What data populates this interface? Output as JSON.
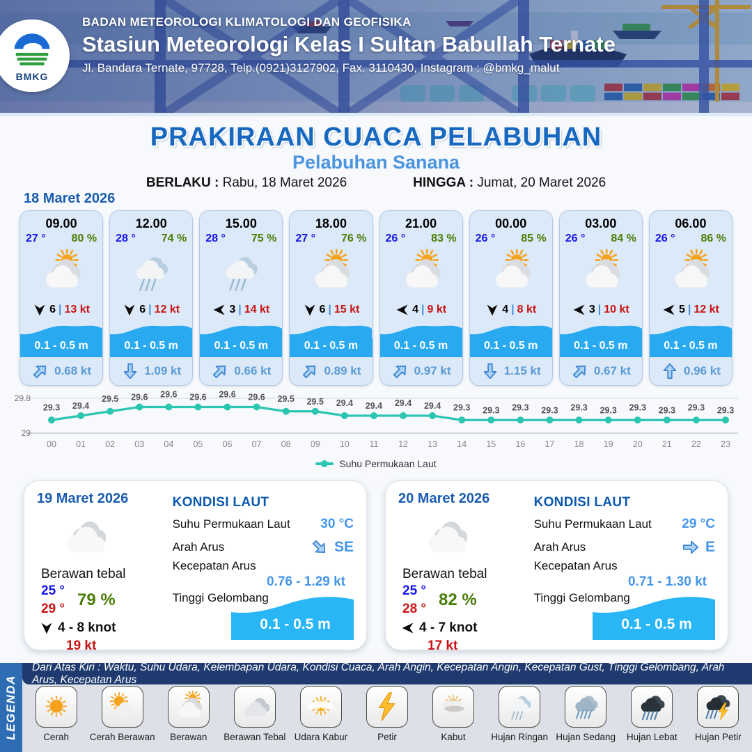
{
  "header": {
    "org": "BADAN METEOROLOGI KLIMATOLOGI DAN GEOFISIKA",
    "station": "Stasiun Meteorologi Kelas I Sultan Babullah Ternate",
    "address": "Jl. Bandara Ternate, 97728, Telp.(0921)3127902, Fax. 3110430, Instagram : @bmkg_malut",
    "logo_text": "BMKG"
  },
  "title": {
    "main": "PRAKIRAAN CUACA PELABUHAN",
    "subtitle": "Pelabuhan Sanana",
    "berlaku_label": "BERLAKU :",
    "berlaku_value": "Rabu, 18 Maret 2026",
    "hingga_label": "HINGGA :",
    "hingga_value": "Jumat, 20 Maret 2026"
  },
  "forecast_date": "18 Maret 2026",
  "hourly_cards": [
    {
      "time": "09.00",
      "temp": "27 °",
      "humidity": "80 %",
      "weather_icon": "berawan",
      "wind_dir": "down",
      "wind_speed": "6",
      "gust": "13 kt",
      "wave": "0.1 - 0.5 m",
      "current_dir": "ne",
      "current": "0.68 kt"
    },
    {
      "time": "12.00",
      "temp": "28 °",
      "humidity": "74 %",
      "weather_icon": "hujan-ringan",
      "wind_dir": "down",
      "wind_speed": "6",
      "gust": "12 kt",
      "wave": "0.1 - 0.5 m",
      "current_dir": "down",
      "current": "1.09 kt"
    },
    {
      "time": "15.00",
      "temp": "28 °",
      "humidity": "75 %",
      "weather_icon": "hujan-ringan",
      "wind_dir": "left",
      "wind_speed": "3",
      "gust": "14 kt",
      "wave": "0.1 - 0.5 m",
      "current_dir": "ne",
      "current": "0.66 kt"
    },
    {
      "time": "18.00",
      "temp": "27 °",
      "humidity": "76 %",
      "weather_icon": "berawan",
      "wind_dir": "down",
      "wind_speed": "6",
      "gust": "15 kt",
      "wave": "0.1 - 0.5 m",
      "current_dir": "ne",
      "current": "0.89 kt"
    },
    {
      "time": "21.00",
      "temp": "26 °",
      "humidity": "83 %",
      "weather_icon": "berawan",
      "wind_dir": "left",
      "wind_speed": "4",
      "gust": "9 kt",
      "wave": "0.1 - 0.5 m",
      "current_dir": "ne",
      "current": "0.97 kt"
    },
    {
      "time": "00.00",
      "temp": "26 °",
      "humidity": "85 %",
      "weather_icon": "berawan",
      "wind_dir": "down",
      "wind_speed": "4",
      "gust": "8 kt",
      "wave": "0.1 - 0.5 m",
      "current_dir": "down",
      "current": "1.15 kt"
    },
    {
      "time": "03.00",
      "temp": "26 °",
      "humidity": "84 %",
      "weather_icon": "berawan",
      "wind_dir": "left",
      "wind_speed": "3",
      "gust": "10 kt",
      "wave": "0.1 - 0.5 m",
      "current_dir": "ne",
      "current": "0.67 kt"
    },
    {
      "time": "06.00",
      "temp": "26 °",
      "humidity": "86 %",
      "weather_icon": "berawan",
      "wind_dir": "left",
      "wind_speed": "5",
      "gust": "12 kt",
      "wave": "0.1 - 0.5 m",
      "current_dir": "up",
      "current": "0.96 kt"
    }
  ],
  "chart_data": {
    "type": "line",
    "x": [
      "00",
      "01",
      "02",
      "03",
      "04",
      "05",
      "06",
      "07",
      "08",
      "09",
      "10",
      "11",
      "12",
      "13",
      "14",
      "15",
      "16",
      "17",
      "18",
      "19",
      "20",
      "21",
      "22",
      "23"
    ],
    "series": [
      {
        "name": "Suhu Permukaan Laut",
        "values": [
          29.3,
          29.4,
          29.5,
          29.6,
          29.6,
          29.6,
          29.6,
          29.6,
          29.5,
          29.5,
          29.4,
          29.4,
          29.4,
          29.4,
          29.3,
          29.3,
          29.3,
          29.3,
          29.3,
          29.3,
          29.3,
          29.3,
          29.3,
          29.3
        ]
      }
    ],
    "ylim": [
      29,
      29.8
    ],
    "yticks": [
      "29.8",
      "29"
    ],
    "grid": true,
    "legend_position": "bottom",
    "line_color": "#2cc5b2"
  },
  "daily_cards": [
    {
      "date": "19 Maret 2026",
      "icon": "cloud",
      "condition": "Berawan tebal",
      "temp_min": "25 °",
      "temp_max": "29 °",
      "humidity": "79 %",
      "wind_dir": "down",
      "wind_range": "4  - 8 knot",
      "gust": "19 kt",
      "sea": {
        "title": "KONDISI LAUT",
        "sst_label": "Suhu Permukaan Laut",
        "sst": "30 °C",
        "dir_label": "Arah Arus",
        "dir": "SE",
        "dir_arrow": "se",
        "speed_label": "Kecepatan Arus",
        "speed": "0.76  - 1.29 kt",
        "wave_label": "Tinggi Gelombang",
        "wave": "0.1 - 0.5 m"
      }
    },
    {
      "date": "20 Maret 2026",
      "icon": "cloud",
      "condition": "Berawan tebal",
      "temp_min": "25 °",
      "temp_max": "28 °",
      "humidity": "82 %",
      "wind_dir": "left",
      "wind_range": "4  - 7 knot",
      "gust": "17 kt",
      "sea": {
        "title": "KONDISI LAUT",
        "sst_label": "Suhu Permukaan Laut",
        "sst": "29 °C",
        "dir_label": "Arah Arus",
        "dir": "E",
        "dir_arrow": "e",
        "speed_label": "Kecepatan Arus",
        "speed": "0.71  - 1.30 kt",
        "wave_label": "Tinggi Gelombang",
        "wave": "0.1 - 0.5 m"
      }
    }
  ],
  "legend": {
    "strip": "LEGENDA",
    "caption": "Dari Atas Kiri : Waktu, Suhu Udara, Kelembapan Udara, Kondisi Cuaca, Arah Angin, Kecepatan Angin, Kecepatan Gust, Tinggi Gelombang, Arah Arus, Kecepatan Arus",
    "items": [
      {
        "label": "Cerah",
        "icon": "cerah"
      },
      {
        "label": "Cerah Berawan",
        "icon": "cerah-berawan"
      },
      {
        "label": "Berawan",
        "icon": "berawan"
      },
      {
        "label": "Berawan Tebal",
        "icon": "berawan-tebal"
      },
      {
        "label": "Udara Kabur",
        "icon": "udara-kabur"
      },
      {
        "label": "Petir",
        "icon": "petir"
      },
      {
        "label": "Kabut",
        "icon": "kabut"
      },
      {
        "label": "Hujan Ringan",
        "icon": "hujan-ringan"
      },
      {
        "label": "Hujan Sedang",
        "icon": "hujan-sedang"
      },
      {
        "label": "Hujan Lebat",
        "icon": "hujan-lebat"
      },
      {
        "label": "Hujan Petir",
        "icon": "hujan-petir"
      }
    ]
  },
  "colors": {
    "title_blue": "#1668c0",
    "subtitle_blue": "#4a94e0",
    "temp_blue": "#1515e8",
    "humidity_green": "#4a7d05",
    "gust_red": "#c81414",
    "wave_blue": "#29aaf0",
    "current_blue": "#5b9bd5",
    "sea_value_blue": "#4596e8",
    "chart_teal": "#2cc5b2",
    "legend_strip_blue": "#2e6db4",
    "legend_bar_navy": "#1e3a6e",
    "card_bg": "#dce9f8"
  }
}
